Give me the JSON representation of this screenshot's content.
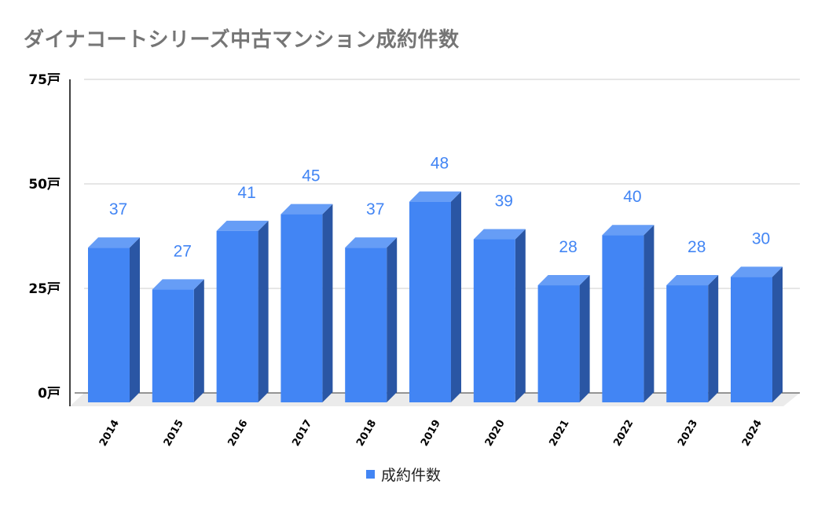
{
  "chart_data": {
    "type": "bar",
    "title": "ダイナコートシリーズ中古マンション成約件数",
    "categories": [
      "2014",
      "2015",
      "2016",
      "2017",
      "2018",
      "2019",
      "2020",
      "2021",
      "2022",
      "2023",
      "2024"
    ],
    "series": [
      {
        "name": "成約件数",
        "values": [
          37,
          27,
          41,
          45,
          37,
          48,
          39,
          28,
          40,
          28,
          30
        ],
        "color": "#4285f4"
      }
    ],
    "xlabel": "",
    "ylabel": "",
    "ylim": [
      0,
      75
    ],
    "yticks": [
      0,
      25,
      50,
      75
    ],
    "ytick_labels": [
      "0戸",
      "25戸",
      "50戸",
      "75戸"
    ],
    "grid": true,
    "legend_position": "bottom",
    "data_labels": true,
    "style": "3d"
  },
  "colors": {
    "front": "#4285f4",
    "top": "#669df6",
    "side": "#2a56a4",
    "title": "#757575",
    "label": "#4285f4"
  }
}
